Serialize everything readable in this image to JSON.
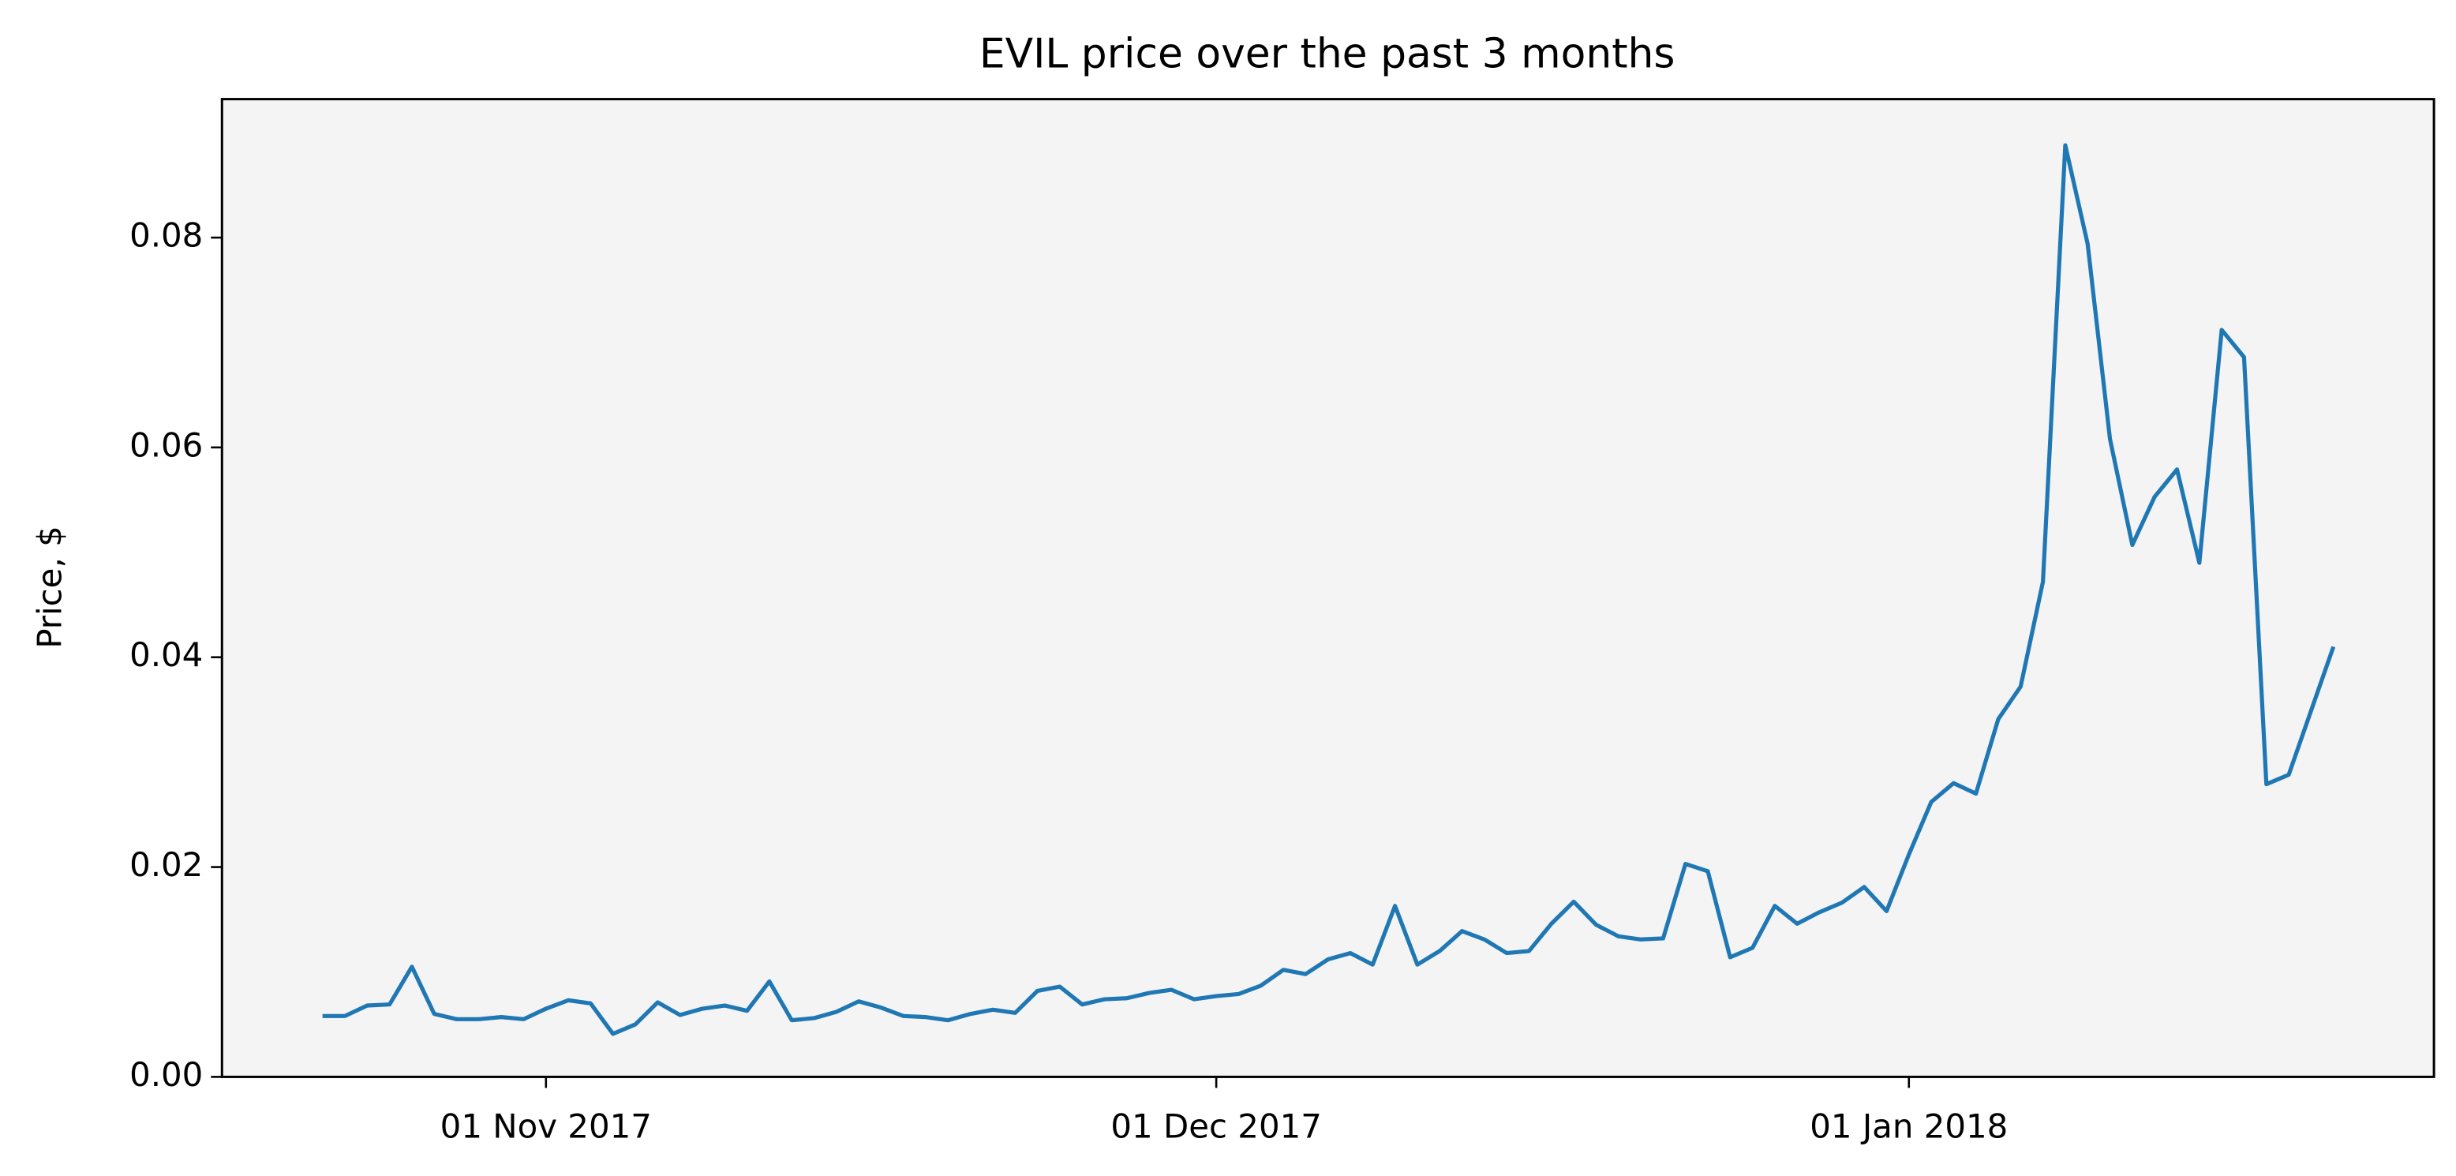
{
  "chart_data": {
    "type": "line",
    "title": "EVIL price over the past 3 months",
    "ylabel": "Price, $",
    "x": [
      "2017-10-22",
      "2017-10-23",
      "2017-10-24",
      "2017-10-25",
      "2017-10-26",
      "2017-10-27",
      "2017-10-28",
      "2017-10-29",
      "2017-10-30",
      "2017-10-31",
      "2017-11-01",
      "2017-11-02",
      "2017-11-03",
      "2017-11-04",
      "2017-11-05",
      "2017-11-06",
      "2017-11-07",
      "2017-11-08",
      "2017-11-09",
      "2017-11-10",
      "2017-11-11",
      "2017-11-12",
      "2017-11-13",
      "2017-11-14",
      "2017-11-15",
      "2017-11-16",
      "2017-11-17",
      "2017-11-18",
      "2017-11-19",
      "2017-11-20",
      "2017-11-21",
      "2017-11-22",
      "2017-11-23",
      "2017-11-24",
      "2017-11-25",
      "2017-11-26",
      "2017-11-27",
      "2017-11-28",
      "2017-11-29",
      "2017-11-30",
      "2017-12-01",
      "2017-12-02",
      "2017-12-03",
      "2017-12-04",
      "2017-12-05",
      "2017-12-06",
      "2017-12-07",
      "2017-12-08",
      "2017-12-09",
      "2017-12-10",
      "2017-12-11",
      "2017-12-12",
      "2017-12-13",
      "2017-12-14",
      "2017-12-15",
      "2017-12-16",
      "2017-12-17",
      "2017-12-18",
      "2017-12-19",
      "2017-12-20",
      "2017-12-21",
      "2017-12-22",
      "2017-12-23",
      "2017-12-24",
      "2017-12-25",
      "2017-12-26",
      "2017-12-27",
      "2017-12-28",
      "2017-12-29",
      "2017-12-30",
      "2017-12-31",
      "2018-01-01",
      "2018-01-02",
      "2018-01-03",
      "2018-01-04",
      "2018-01-05",
      "2018-01-06",
      "2018-01-07",
      "2018-01-08",
      "2018-01-09",
      "2018-01-10",
      "2018-01-11",
      "2018-01-12",
      "2018-01-13",
      "2018-01-14",
      "2018-01-15",
      "2018-01-16",
      "2018-01-17",
      "2018-01-18",
      "2018-01-19",
      "2018-01-20"
    ],
    "values": [
      0.0058,
      0.0058,
      0.0068,
      0.0069,
      0.0105,
      0.006,
      0.0055,
      0.0055,
      0.0057,
      0.0055,
      0.0065,
      0.0073,
      0.007,
      0.0041,
      0.005,
      0.0071,
      0.0059,
      0.0065,
      0.0068,
      0.0063,
      0.0091,
      0.0054,
      0.0056,
      0.0062,
      0.0072,
      0.0066,
      0.0058,
      0.0057,
      0.0054,
      0.006,
      0.0064,
      0.0061,
      0.0082,
      0.0086,
      0.0069,
      0.0074,
      0.0075,
      0.008,
      0.0083,
      0.0074,
      0.0077,
      0.0079,
      0.0087,
      0.0102,
      0.0098,
      0.0112,
      0.0118,
      0.0107,
      0.0163,
      0.0107,
      0.012,
      0.0139,
      0.0131,
      0.0118,
      0.012,
      0.0146,
      0.0167,
      0.0145,
      0.0134,
      0.0131,
      0.0132,
      0.0203,
      0.0196,
      0.0114,
      0.0123,
      0.0163,
      0.0146,
      0.0157,
      0.0166,
      0.0181,
      0.0158,
      0.0212,
      0.0262,
      0.028,
      0.027,
      0.0341,
      0.0372,
      0.0472,
      0.0888,
      0.0794,
      0.0608,
      0.0507,
      0.0553,
      0.0579,
      0.049,
      0.0712,
      0.0686,
      0.0279,
      0.0288,
      0.0349,
      0.041
    ],
    "color": "#1f77b4",
    "xlim": [
      "2017-10-17T12:00:00Z",
      "2018-01-24T12:00:00Z"
    ],
    "xticks": [
      {
        "value": "2017-11-01",
        "label": "01 Nov 2017"
      },
      {
        "value": "2017-12-01",
        "label": "01 Dec 2017"
      },
      {
        "value": "2018-01-01",
        "label": "01 Jan 2018"
      }
    ],
    "ylim": [
      0,
      0.0932
    ],
    "yticks": [
      {
        "value": 0,
        "label": "0.00"
      },
      0.02,
      0.04,
      0.06,
      0.08
    ],
    "grid": false
  }
}
